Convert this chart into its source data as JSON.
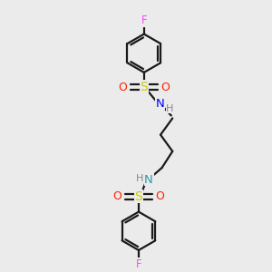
{
  "bg_color": "#ebebeb",
  "bond_color": "#1a1a1a",
  "S_color": "#cccc00",
  "O_color": "#ff2200",
  "N_color": "#0000ff",
  "N2_color": "#3399aa",
  "F_color": "#ff44ff",
  "H_color": "#888888",
  "line_width": 1.6,
  "figsize": [
    3.0,
    3.0
  ],
  "dpi": 100,
  "xlim": [
    0,
    10
  ],
  "ylim": [
    0,
    10
  ]
}
